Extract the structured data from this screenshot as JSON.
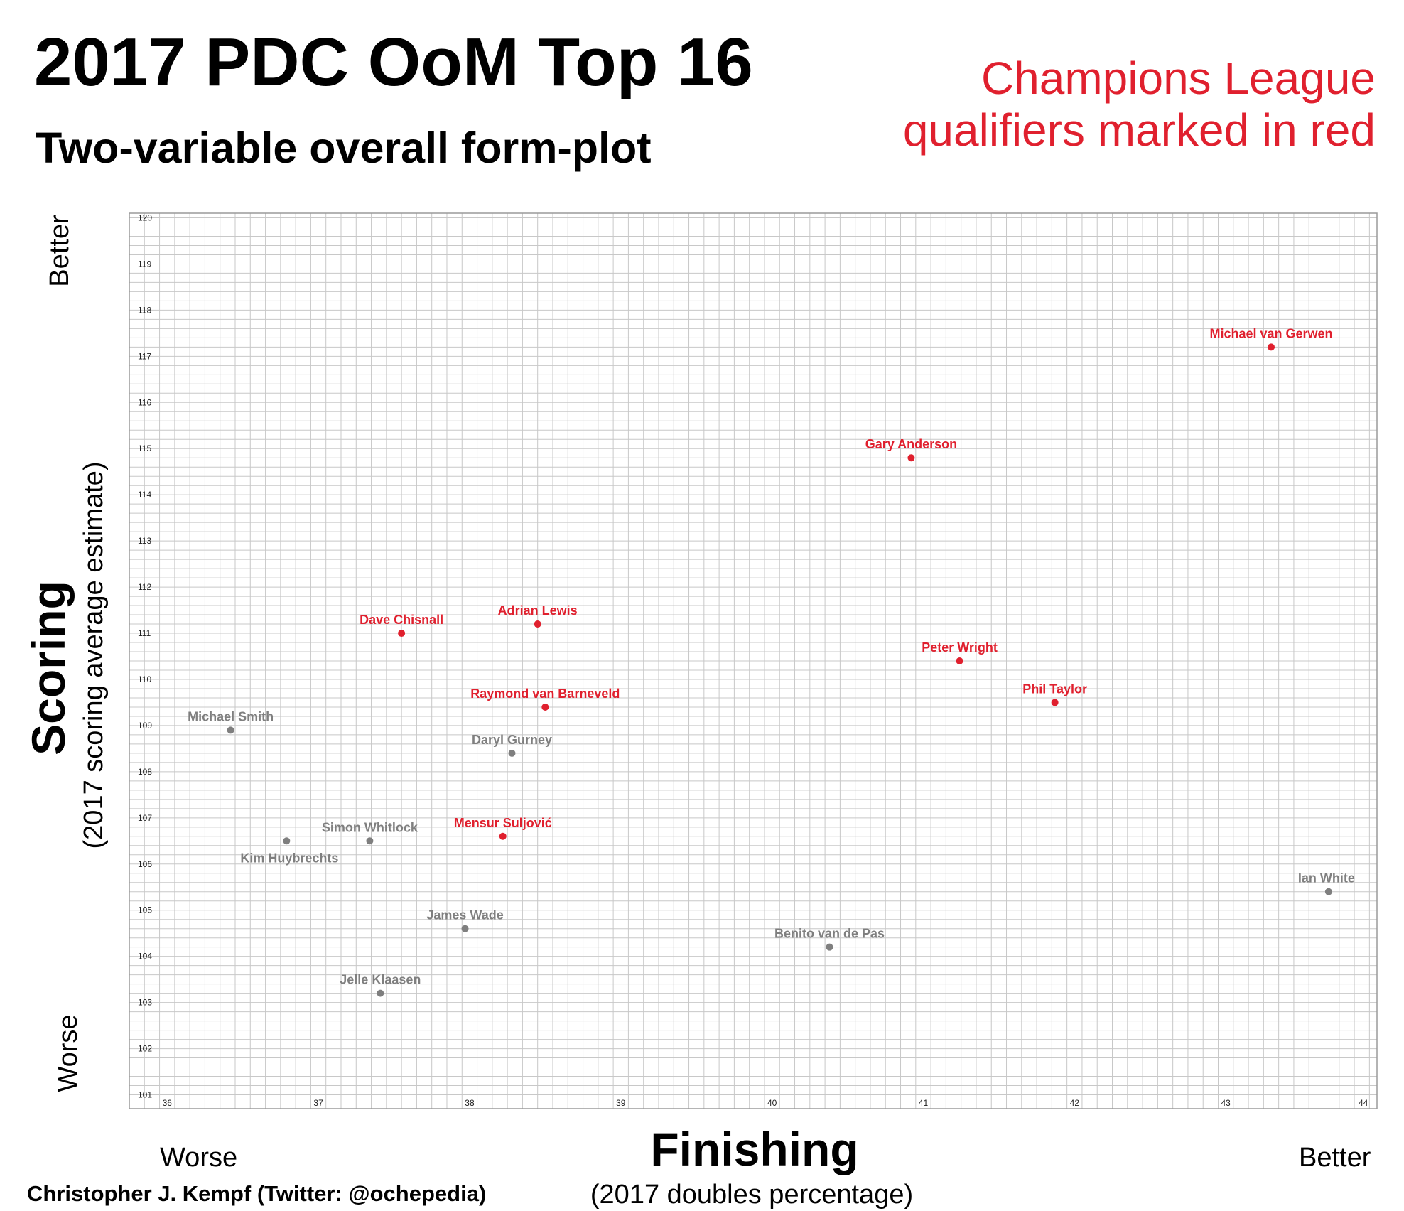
{
  "header": {
    "title": "2017 PDC OoM Top 16",
    "subtitle": "Two-variable overall form-plot",
    "note_line1": "Champions League",
    "note_line2": "qualifiers marked in red"
  },
  "axes": {
    "y_title": "Scoring",
    "y_subtitle": "(2017 scoring average estimate)",
    "y_better": "Better",
    "y_worse": "Worse",
    "x_title": "Finishing",
    "x_subtitle": "(2017 doubles percentage)",
    "x_worse": "Worse",
    "x_better": "Better"
  },
  "credit": "Christopher J. Kempf (Twitter: @ochepedia)",
  "colors": {
    "qualifier": "#e0202e",
    "non_qualifier": "#7f7f7f",
    "grid": "#c8c8c8"
  },
  "chart_data": {
    "type": "scatter",
    "title": "2017 PDC OoM Top 16",
    "subtitle": "Two-variable overall form-plot",
    "xlabel": "Finishing",
    "ylabel": "Scoring",
    "xlim": [
      35.8,
      44.05
    ],
    "ylim": [
      100.7,
      120.1
    ],
    "x_ticks": [
      36,
      37,
      38,
      39,
      40,
      41,
      42,
      43,
      44
    ],
    "y_ticks": [
      101,
      102,
      103,
      104,
      105,
      106,
      107,
      108,
      109,
      110,
      111,
      112,
      113,
      114,
      115,
      116,
      117,
      118,
      119,
      120
    ],
    "grid": true,
    "points": [
      {
        "label": "Michael van Gerwen",
        "x": 43.35,
        "y": 117.2,
        "qualifier": true
      },
      {
        "label": "Gary Anderson",
        "x": 40.97,
        "y": 114.8,
        "qualifier": true
      },
      {
        "label": "Adrian Lewis",
        "x": 38.5,
        "y": 111.2,
        "qualifier": true
      },
      {
        "label": "Dave Chisnall",
        "x": 37.6,
        "y": 111.0,
        "qualifier": true
      },
      {
        "label": "Peter Wright",
        "x": 41.29,
        "y": 110.4,
        "qualifier": true
      },
      {
        "label": "Raymond van Barneveld",
        "x": 38.55,
        "y": 109.4,
        "qualifier": true
      },
      {
        "label": "Phil Taylor",
        "x": 41.92,
        "y": 109.5,
        "qualifier": true
      },
      {
        "label": "Mensur Suljović",
        "x": 38.27,
        "y": 106.6,
        "qualifier": true
      },
      {
        "label": "Michael Smith",
        "x": 36.47,
        "y": 108.9,
        "qualifier": false
      },
      {
        "label": "Daryl Gurney",
        "x": 38.33,
        "y": 108.4,
        "qualifier": false
      },
      {
        "label": "Simon Whitlock",
        "x": 37.39,
        "y": 106.5,
        "qualifier": false
      },
      {
        "label": "Kim Huybrechts",
        "x": 36.84,
        "y": 106.5,
        "qualifier": false
      },
      {
        "label": "James Wade",
        "x": 38.02,
        "y": 104.6,
        "qualifier": false
      },
      {
        "label": "Benito van de Pas",
        "x": 40.43,
        "y": 104.2,
        "qualifier": false
      },
      {
        "label": "Jelle Klaasen",
        "x": 37.46,
        "y": 103.2,
        "qualifier": false
      },
      {
        "label": "Ian White",
        "x": 43.73,
        "y": 105.4,
        "qualifier": false
      }
    ]
  }
}
